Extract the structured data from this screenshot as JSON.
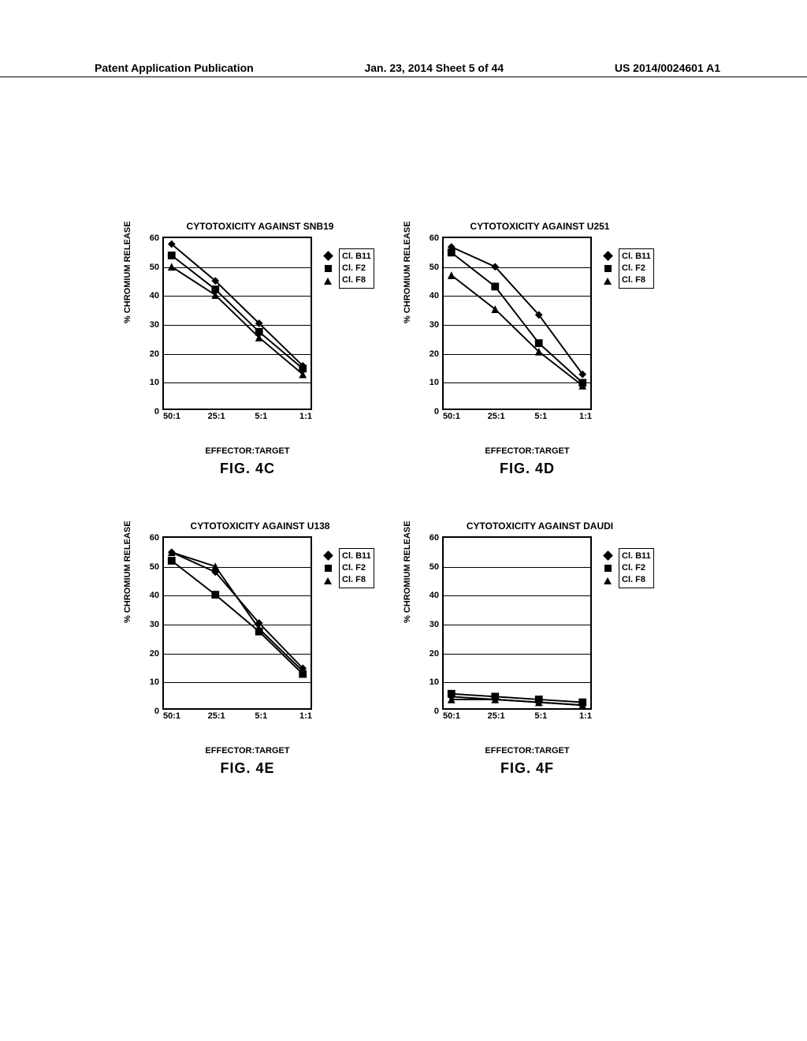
{
  "header": {
    "left": "Patent Application Publication",
    "center": "Jan. 23, 2014  Sheet 5 of 44",
    "right": "US 2014/0024601 A1"
  },
  "common": {
    "ylabel": "% CHROMIUM RELEASE",
    "xlabel": "EFFECTOR:TARGET",
    "yticks": [
      0,
      10,
      20,
      30,
      40,
      50,
      60
    ],
    "ylim": [
      0,
      60
    ],
    "xticks": [
      "50:1",
      "25:1",
      "5:1",
      "1:1"
    ],
    "xpositions": [
      0,
      1,
      2,
      3
    ],
    "series_labels": [
      "Cl. B11",
      "Cl. F2",
      "Cl. F8"
    ],
    "series_markers": [
      "diamond",
      "square",
      "triangle"
    ],
    "line_color": "#000000",
    "axis_color": "#000000",
    "background": "#ffffff",
    "line_width": 2,
    "marker_size": 9,
    "label_fontsize": 11,
    "title_fontsize": 12
  },
  "charts": [
    {
      "title": "CYTOTOXICITY AGAINST SNB19",
      "caption": "FIG. 4C",
      "series": [
        {
          "name": "Cl. B11",
          "marker": "diamond",
          "values": [
            58,
            45,
            30,
            15
          ]
        },
        {
          "name": "Cl. F2",
          "marker": "square",
          "values": [
            54,
            42,
            27,
            14
          ]
        },
        {
          "name": "Cl. F8",
          "marker": "triangle",
          "values": [
            50,
            40,
            25,
            12
          ]
        }
      ]
    },
    {
      "title": "CYTOTOXICITY AGAINST U251",
      "caption": "FIG. 4D",
      "series": [
        {
          "name": "Cl. B11",
          "marker": "diamond",
          "values": [
            57,
            50,
            33,
            12
          ]
        },
        {
          "name": "Cl. F2",
          "marker": "square",
          "values": [
            55,
            43,
            23,
            9
          ]
        },
        {
          "name": "Cl. F8",
          "marker": "triangle",
          "values": [
            47,
            35,
            20,
            8
          ]
        }
      ]
    },
    {
      "title": "CYTOTOXICITY AGAINST U138",
      "caption": "FIG. 4E",
      "series": [
        {
          "name": "Cl. B11",
          "marker": "diamond",
          "values": [
            55,
            48,
            30,
            14
          ]
        },
        {
          "name": "Cl. F2",
          "marker": "square",
          "values": [
            52,
            40,
            27,
            12
          ]
        },
        {
          "name": "Cl. F8",
          "marker": "triangle",
          "values": [
            55,
            50,
            28,
            13
          ]
        }
      ]
    },
    {
      "title": "CYTOTOXICITY AGAINST DAUDI",
      "caption": "FIG. 4F",
      "series": [
        {
          "name": "Cl. B11",
          "marker": "diamond",
          "values": [
            4,
            3,
            2,
            1
          ]
        },
        {
          "name": "Cl. F2",
          "marker": "square",
          "values": [
            5,
            4,
            3,
            2
          ]
        },
        {
          "name": "Cl. F8",
          "marker": "triangle",
          "values": [
            3,
            3,
            2,
            1
          ]
        }
      ]
    }
  ]
}
